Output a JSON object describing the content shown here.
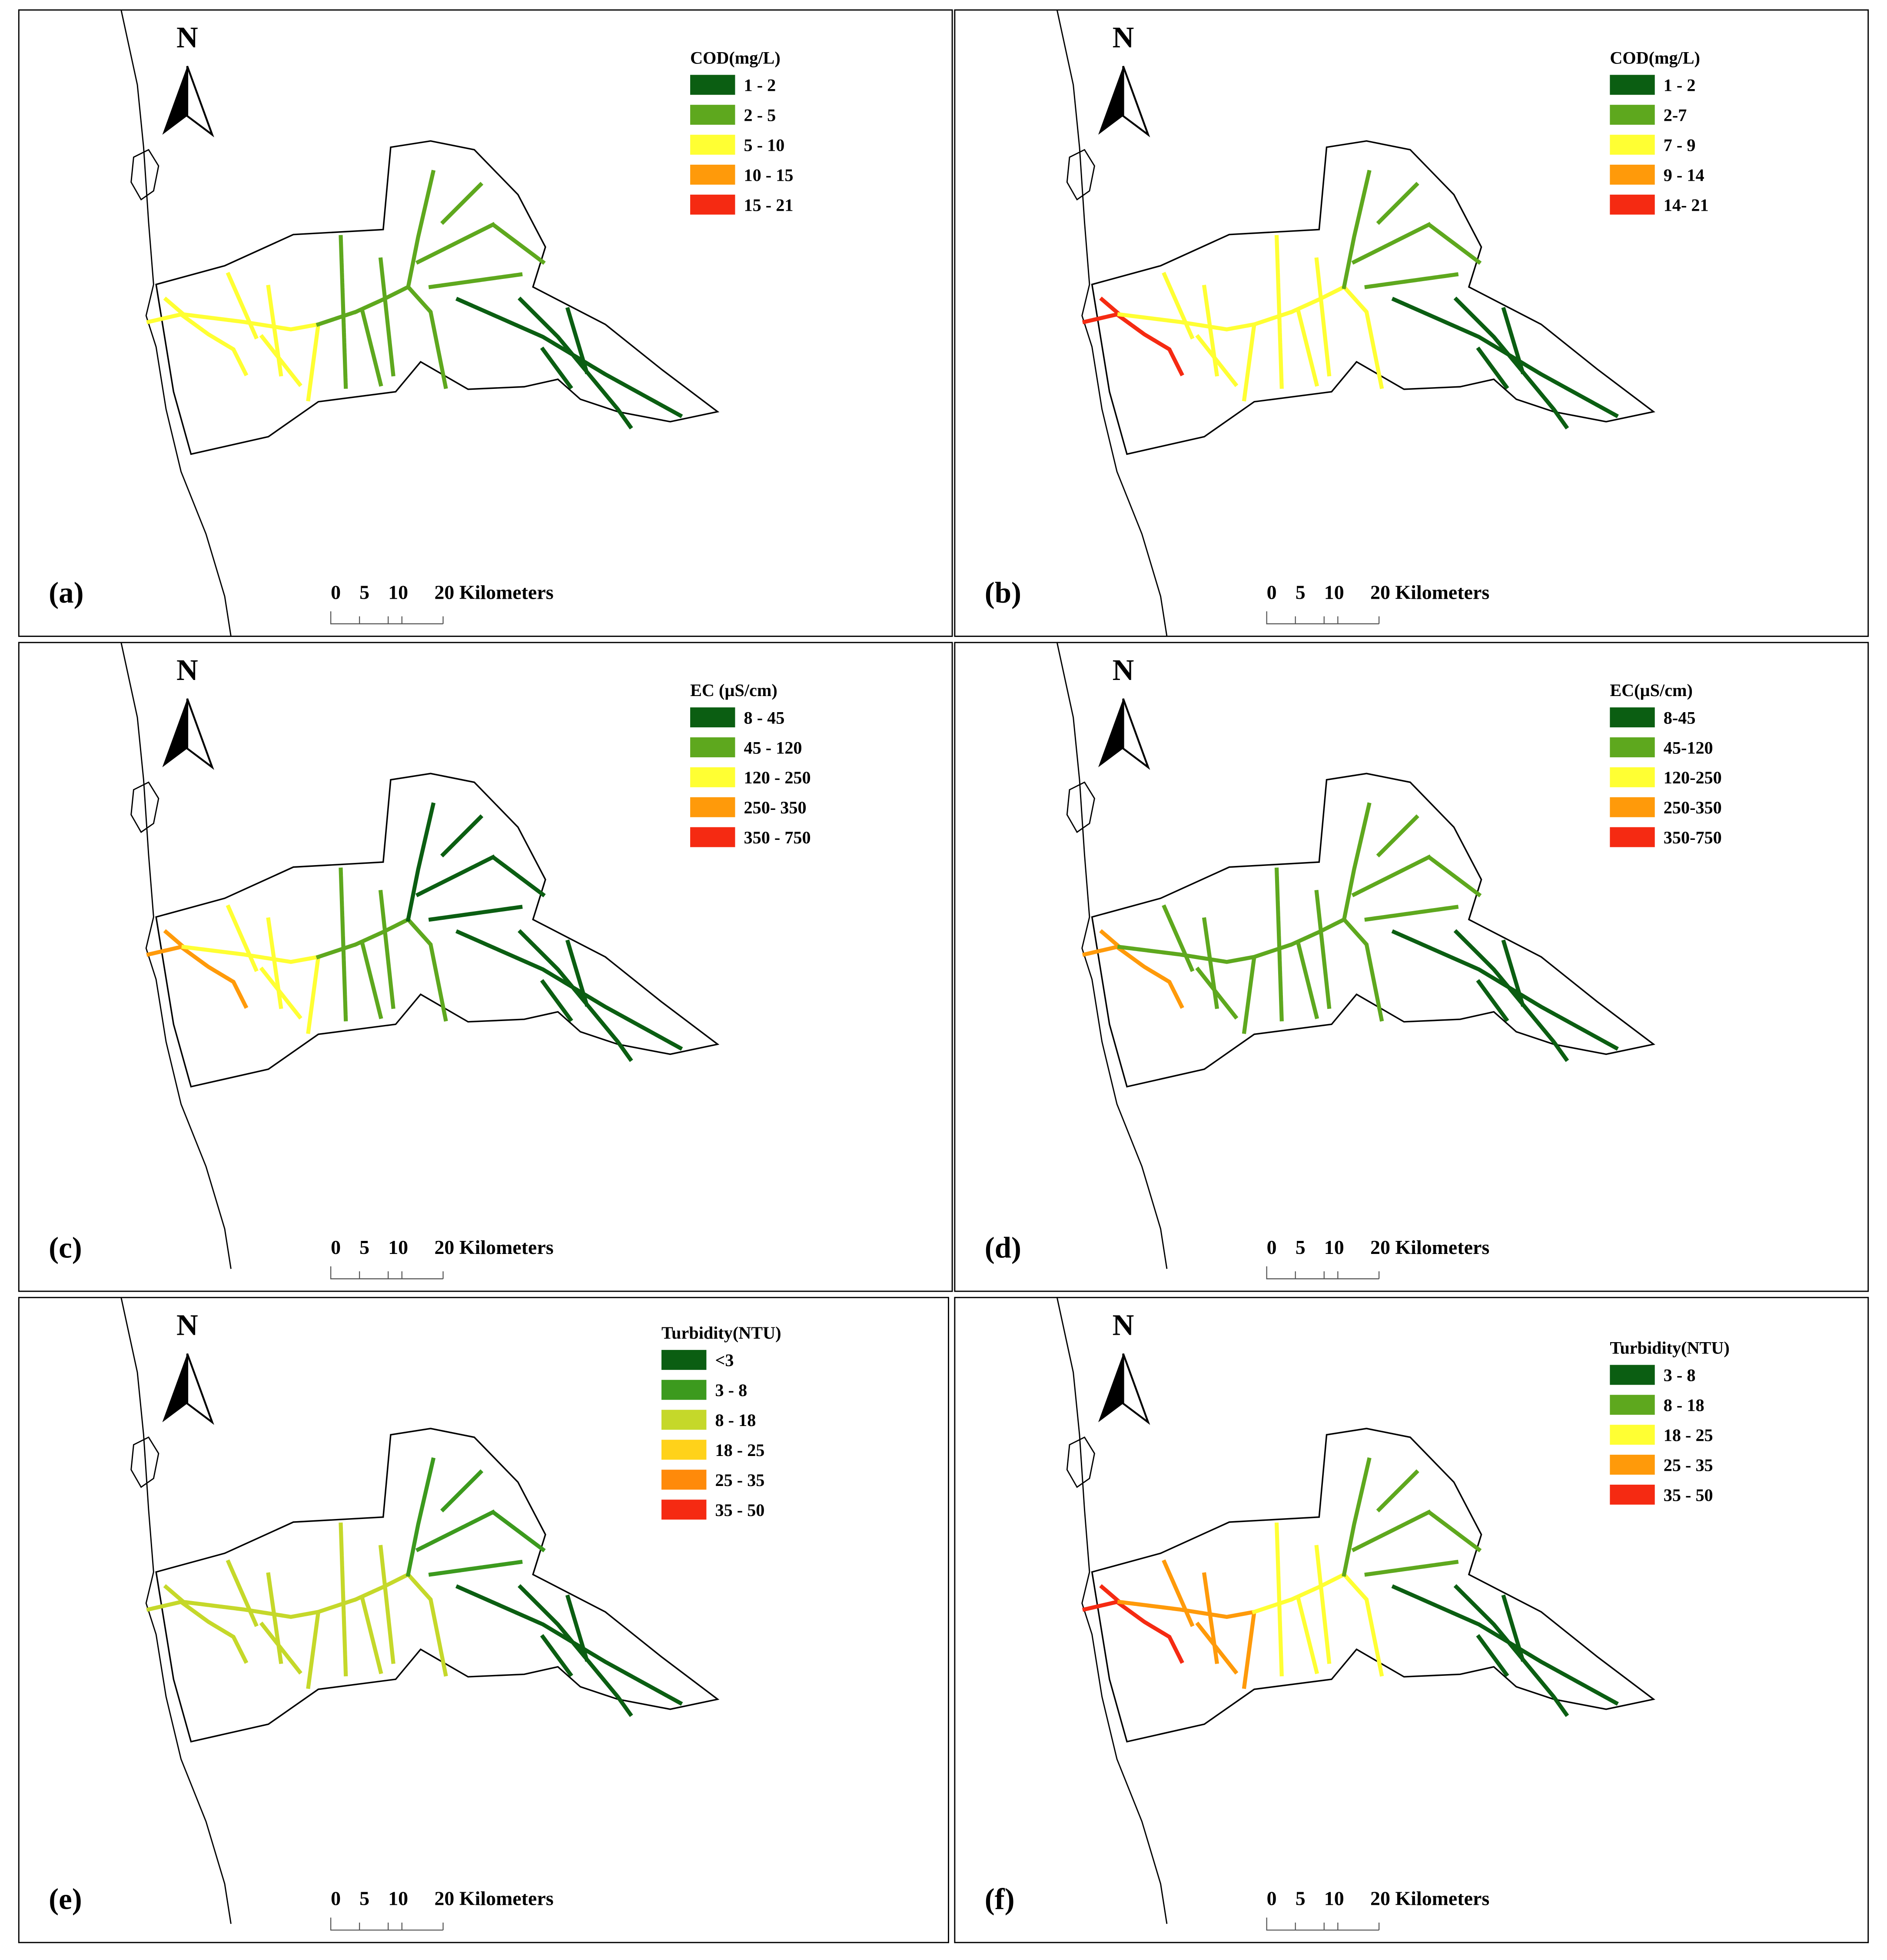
{
  "panels": [
    {
      "label": "(a)",
      "north": "N",
      "legend": {
        "title": "COD(mg/L)",
        "items": [
          {
            "label": "1 - 2",
            "color": "#0b5e12"
          },
          {
            "label": "2 - 5",
            "color": "#5ea81e"
          },
          {
            "label": "5 - 10",
            "color": "#ffff33"
          },
          {
            "label": "10 - 15",
            "color": "#ff9a0a"
          },
          {
            "label": "15 - 21",
            "color": "#f52a12"
          }
        ]
      },
      "scale": [
        "0",
        "5",
        "10",
        "20 Kilometers"
      ]
    },
    {
      "label": "(b)",
      "north": "N",
      "legend": {
        "title": "COD(mg/L)",
        "items": [
          {
            "label": "1 - 2",
            "color": "#0b5e12"
          },
          {
            "label": "2-7",
            "color": "#5ea81e"
          },
          {
            "label": "7 - 9",
            "color": "#ffff33"
          },
          {
            "label": "9 - 14",
            "color": "#ff9a0a"
          },
          {
            "label": "14- 21",
            "color": "#f52a12"
          }
        ]
      },
      "scale": [
        "0",
        "5",
        "10",
        "20 Kilometers"
      ]
    },
    {
      "label": "(c)",
      "north": "N",
      "legend": {
        "title": "EC (µS/cm)",
        "items": [
          {
            "label": "8 - 45",
            "color": "#0b5e12"
          },
          {
            "label": "45 - 120",
            "color": "#5ea81e"
          },
          {
            "label": "120 - 250",
            "color": "#ffff33"
          },
          {
            "label": "250- 350",
            "color": "#ff9a0a"
          },
          {
            "label": "350 - 750",
            "color": "#f52a12"
          }
        ]
      },
      "scale": [
        "0",
        "5",
        "10",
        "20 Kilometers"
      ]
    },
    {
      "label": "(d)",
      "north": "N",
      "legend": {
        "title": "EC(µS/cm)",
        "items": [
          {
            "label": "8-45",
            "color": "#0b5e12"
          },
          {
            "label": "45-120",
            "color": "#5ea81e"
          },
          {
            "label": "120-250",
            "color": "#ffff33"
          },
          {
            "label": "250-350",
            "color": "#ff9a0a"
          },
          {
            "label": "350-750",
            "color": "#f52a12"
          }
        ]
      },
      "scale": [
        "0",
        "5",
        "10",
        "20 Kilometers"
      ]
    },
    {
      "label": "(e)",
      "north": "N",
      "legend": {
        "title": "Turbidity(NTU)",
        "items": [
          {
            "label": "<3",
            "color": "#0b5e12"
          },
          {
            "label": "3 - 8",
            "color": "#3c9a1e"
          },
          {
            "label": "8 - 18",
            "color": "#c5d82a"
          },
          {
            "label": "18 - 25",
            "color": "#ffd21a"
          },
          {
            "label": "25 - 35",
            "color": "#ff8a0a"
          },
          {
            "label": "35 - 50",
            "color": "#f52a12"
          }
        ]
      },
      "scale": [
        "0",
        "5",
        "10",
        "20 Kilometers"
      ]
    },
    {
      "label": "(f)",
      "north": "N",
      "legend": {
        "title": "Turbidity(NTU)",
        "items": [
          {
            "label": "3 - 8",
            "color": "#0b5e12"
          },
          {
            "label": "8 - 18",
            "color": "#5ea81e"
          },
          {
            "label": "18 - 25",
            "color": "#ffff33"
          },
          {
            "label": "25 - 35",
            "color": "#ff9a0a"
          },
          {
            "label": "35 - 50",
            "color": "#f52a12"
          }
        ]
      },
      "scale": [
        "0",
        "5",
        "10",
        "20 Kilometers"
      ]
    }
  ]
}
